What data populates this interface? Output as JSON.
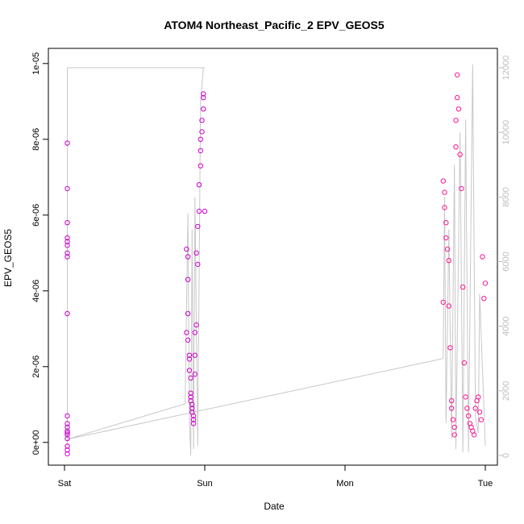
{
  "chart_data": {
    "type": "scatter",
    "title": "ATOM4 Northeast_Pacific_2 EPV_GEOS5",
    "xlabel": "Date",
    "ylabel": "EPV_GEOS5",
    "x_ticks": [
      "Sat",
      "Sun",
      "Mon",
      "Tue"
    ],
    "y_ticks": [
      "0e+00",
      "2e-06",
      "4e-06",
      "6e-06",
      "8e-06",
      "1e-05"
    ],
    "y_tick_values": [
      0,
      2e-06,
      4e-06,
      6e-06,
      8e-06,
      1e-05
    ],
    "ylim": [
      -6e-07,
      1.04e-05
    ],
    "xlim": [
      "Sat 00:00",
      "Tue 03:00"
    ],
    "y2_ticks": [
      "0",
      "2000",
      "4000",
      "6000",
      "8000",
      "10000",
      "12000"
    ],
    "y2_tick_values": [
      0,
      2000,
      4000,
      6000,
      8000,
      10000,
      12000
    ],
    "y2lim": [
      -300,
      12600
    ],
    "grid": false,
    "colors": {
      "points": "#ff1493",
      "points_alt": "#cc00cc",
      "altitude_line": "#c8c8c8",
      "right_axis": "#bdbdbd"
    },
    "series": [
      {
        "values_x_day": [
          0.02,
          0.02,
          0.02,
          0.02,
          0.02,
          0.02,
          0.02,
          0.02,
          0.02,
          0.02,
          0.02,
          0.02,
          0.02,
          0.02,
          0.02,
          0.02,
          0.02,
          0.02,
          0.02,
          0.87,
          0.87,
          0.88,
          0.88,
          0.88,
          0.88,
          0.89,
          0.89,
          0.89,
          0.9,
          0.9,
          0.9,
          0.9,
          0.91,
          0.91,
          0.91,
          0.92,
          0.92,
          0.92,
          0.93,
          0.93,
          0.93,
          0.94,
          0.94,
          0.95,
          0.95,
          0.96,
          0.96,
          0.97,
          0.97,
          0.97,
          0.98,
          0.98,
          0.99,
          0.99,
          0.99,
          1.0,
          2.7,
          2.7,
          2.71,
          2.71,
          2.72,
          2.72,
          2.73,
          2.74,
          2.74,
          2.75,
          2.76,
          2.76,
          2.77,
          2.78,
          2.78,
          2.79,
          2.79,
          2.8,
          2.8,
          2.81,
          2.82,
          2.83,
          2.84,
          2.85,
          2.86,
          2.87,
          2.88,
          2.89,
          2.9,
          2.91,
          2.92,
          2.93,
          2.94,
          2.95,
          2.96,
          2.97,
          2.98,
          2.99,
          3.0
        ],
        "values_y": [
          7.9e-06,
          6.7e-06,
          5.8e-06,
          5.4e-06,
          5.3e-06,
          5.2e-06,
          5e-06,
          4.9e-06,
          3.4e-06,
          7e-07,
          5e-07,
          4e-07,
          3e-07,
          2e-07,
          1e-07,
          -1e-07,
          -2e-07,
          -3e-07,
          2.5e-07,
          2.9e-06,
          5.1e-06,
          4.9e-06,
          4.3e-06,
          3.4e-06,
          2.7e-06,
          2.3e-06,
          2.2e-06,
          1.9e-06,
          1.7e-06,
          1.3e-06,
          1.2e-06,
          1.1e-06,
          1e-06,
          9e-07,
          8e-07,
          7e-07,
          6e-07,
          5e-07,
          1.8e-06,
          2.3e-06,
          2.9e-06,
          3.1e-06,
          5e-06,
          4.7e-06,
          5.7e-06,
          6.1e-06,
          6.8e-06,
          7.3e-06,
          7.7e-06,
          8e-06,
          8.2e-06,
          8.5e-06,
          8.8e-06,
          9.1e-06,
          9.2e-06,
          6.1e-06,
          3.7e-06,
          6.9e-06,
          6.6e-06,
          6.2e-06,
          5.8e-06,
          5.4e-06,
          5.1e-06,
          4.8e-06,
          3.6e-06,
          2.5e-06,
          1.1e-06,
          9e-07,
          6e-07,
          4e-07,
          2e-07,
          7.8e-06,
          8.5e-06,
          9.1e-06,
          9.7e-06,
          8.8e-06,
          7.6e-06,
          6.7e-06,
          4.1e-06,
          2.1e-06,
          1.2e-06,
          9e-07,
          7e-07,
          5e-07,
          4e-07,
          3e-07,
          2e-07,
          9e-07,
          1.1e-06,
          1.2e-06,
          8e-07,
          6e-07,
          4.9e-06,
          3.8e-06,
          4.2e-06,
          3.7e-06,
          2.9e-06,
          2.1e-06,
          1.2e-06
        ]
      },
      {
        "name": "",
        "type": "line",
        "axis": "right"
      }
    ]
  }
}
